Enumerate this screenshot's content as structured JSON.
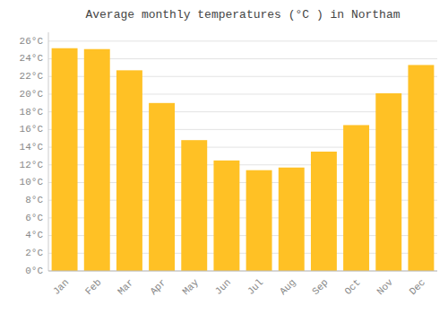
{
  "chart_data": {
    "type": "bar",
    "title": "Average monthly temperatures (°C ) in Northam",
    "categories": [
      "Jan",
      "Feb",
      "Mar",
      "Apr",
      "May",
      "Jun",
      "Jul",
      "Aug",
      "Sep",
      "Oct",
      "Nov",
      "Dec"
    ],
    "values": [
      25.2,
      25.1,
      22.7,
      19.0,
      14.8,
      12.5,
      11.4,
      11.7,
      13.5,
      16.5,
      20.1,
      23.3
    ],
    "color": "#FFC125",
    "ylim": [
      0,
      27
    ],
    "yticks": [
      {
        "value": 0,
        "label": "0°C"
      },
      {
        "value": 2,
        "label": "2°C"
      },
      {
        "value": 4,
        "label": "4°C"
      },
      {
        "value": 6,
        "label": "6°C"
      },
      {
        "value": 8,
        "label": "8°C"
      },
      {
        "value": 10,
        "label": "10°C"
      },
      {
        "value": 12,
        "label": "12°C"
      },
      {
        "value": 14,
        "label": "14°C"
      },
      {
        "value": 16,
        "label": "16°C"
      },
      {
        "value": 18,
        "label": "18°C"
      },
      {
        "value": 20,
        "label": "20°C"
      },
      {
        "value": 22,
        "label": "22°C"
      },
      {
        "value": 24,
        "label": "24°C"
      },
      {
        "value": 26,
        "label": "26°C"
      }
    ],
    "grid": true
  }
}
